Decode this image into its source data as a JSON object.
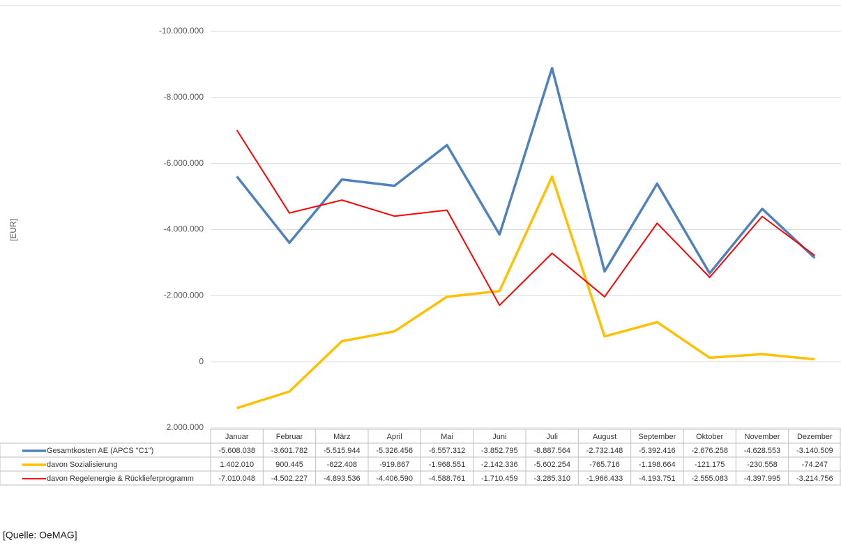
{
  "chart_data": {
    "type": "line",
    "y_label": "[EUR]",
    "source": "[Quelle: OeMAG]",
    "categories": [
      "Januar",
      "Februar",
      "März",
      "April",
      "Mai",
      "Juni",
      "Juli",
      "August",
      "September",
      "Oktober",
      "November",
      "Dezember"
    ],
    "ylim": [
      -10000000,
      2000000
    ],
    "y_reversed": true,
    "grid": true,
    "yticks": [
      {
        "value": -10000000,
        "label": "-10.000.000"
      },
      {
        "value": -8000000,
        "label": "-8.000.000"
      },
      {
        "value": -6000000,
        "label": "-6.000.000"
      },
      {
        "value": -4000000,
        "label": "-4.000.000"
      },
      {
        "value": -2000000,
        "label": "-2.000.000"
      },
      0,
      {
        "value": 2000000,
        "label": "2.000.000"
      }
    ],
    "series": [
      {
        "name": "Gesamtkosten AE (APCS \"C1\")",
        "color": "#4f81bd",
        "width": 3.5,
        "values": [
          -5608038,
          -3601782,
          -5515944,
          -5326456,
          -6557312,
          -3852795,
          -8887564,
          -2732148,
          -5392416,
          -2676258,
          -4628553,
          -3140509
        ],
        "value_labels": [
          "-5.608.038",
          "-3.601.782",
          "-5.515.944",
          "-5.326.456",
          "-6.557.312",
          "-3.852.795",
          "-8.887.564",
          "-2.732.148",
          "-5.392.416",
          "-2.676.258",
          "-4.628.553",
          "-3.140.509"
        ]
      },
      {
        "name": "davon Sozialisierung",
        "color": "#ffc000",
        "width": 3.5,
        "values": [
          1402010,
          900445,
          -622408,
          -919867,
          -1968551,
          -2142336,
          -5602254,
          -765716,
          -1198664,
          -121175,
          -230558,
          -74247
        ],
        "value_labels": [
          "1.402.010",
          "900.445",
          "-622.408",
          "-919.867",
          "-1.968.551",
          "-2.142.336",
          "-5.602.254",
          "-765.716",
          "-1.198.664",
          "-121.175",
          "-230.558",
          "-74.247"
        ]
      },
      {
        "name": "davon Regelenergie & Rücklieferprogramm",
        "color": "#ff0000",
        "width": 2,
        "values": [
          -7010048,
          -4502227,
          -4893536,
          -4406590,
          -4588761,
          -1710459,
          -3285310,
          -1966433,
          -4193751,
          -2555083,
          -4397995,
          -3214756
        ],
        "value_labels": [
          "-7.010.048",
          "-4.502.227",
          "-4.893.536",
          "-4.406.590",
          "-4.588.761",
          "-1.710.459",
          "-3.285.310",
          "-1.966.433",
          "-4.193.751",
          "-2.555.083",
          "-4.397.995",
          "-3.214.756"
        ]
      }
    ]
  }
}
